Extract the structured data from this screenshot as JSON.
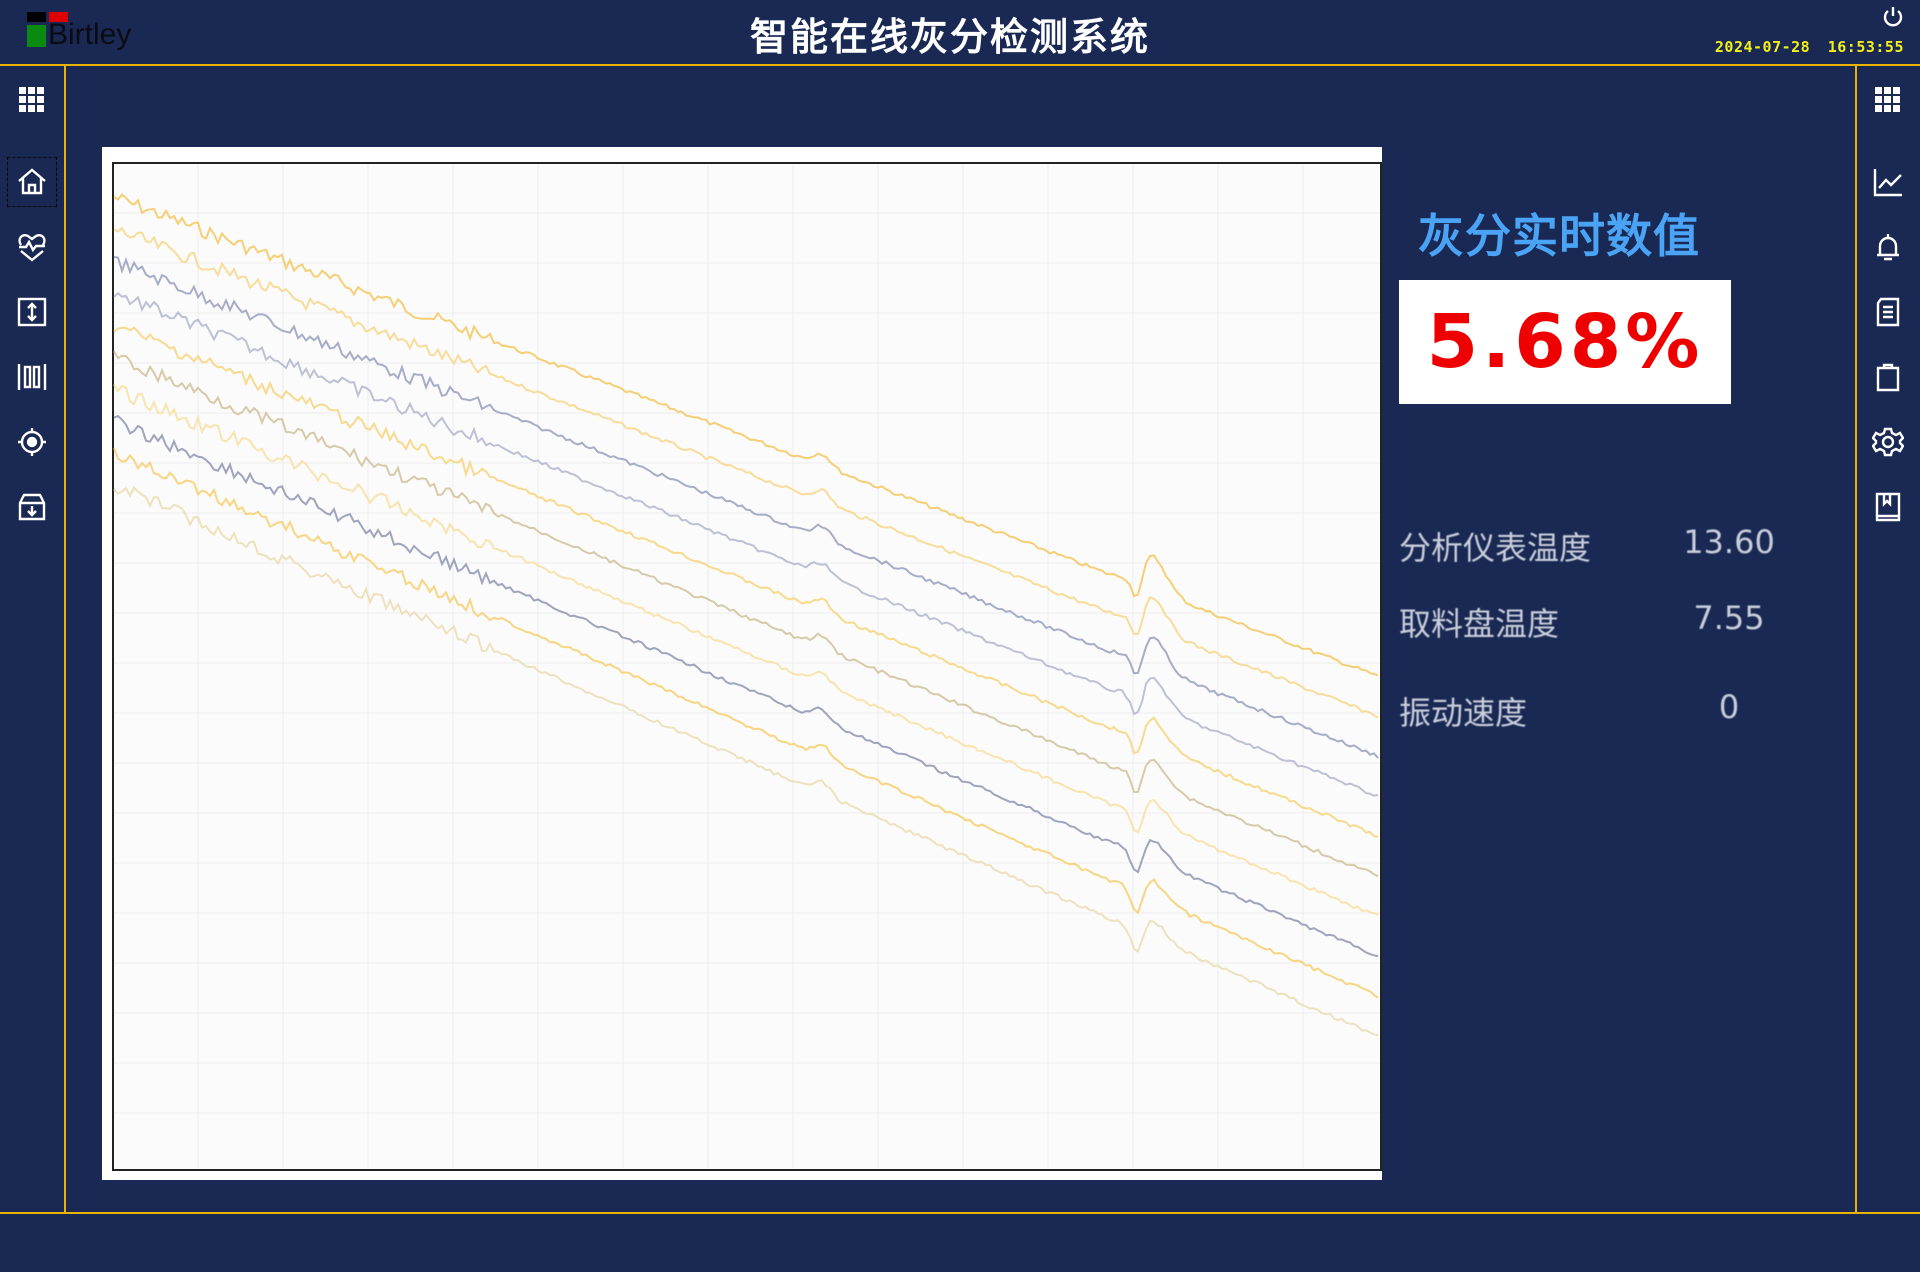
{
  "header": {
    "logo_text": "Birtley",
    "title": "智能在线灰分检测系统",
    "datetime": "2024-07-28 16:53:55"
  },
  "colors": {
    "background": "#192953",
    "accent_line": "#e8b400",
    "title_blue": "#4aa3f5",
    "value_red": "#ee0000",
    "datetime": "#f4f01a"
  },
  "left_sidebar": {
    "icons": [
      "apps-grid-icon",
      "home-icon",
      "health-heart-icon",
      "vertical-adjust-icon",
      "barcode-scan-icon",
      "target-icon",
      "archive-download-icon"
    ]
  },
  "right_sidebar": {
    "icons": [
      "apps-grid-icon",
      "line-chart-icon",
      "bell-icon",
      "document-icon",
      "clipboard-icon",
      "settings-gear-icon",
      "book-icon"
    ]
  },
  "chart": {
    "series_colors": [
      "#f3c04a",
      "#f7d27a",
      "#8a93b5",
      "#a8aec8",
      "#f5cf6a",
      "#c9b98e",
      "#f8dc96",
      "#7f88a8",
      "#f6c85a",
      "#e9d8a8"
    ]
  },
  "realtime": {
    "title": "灰分实时数值",
    "value": "5.68%"
  },
  "readings": [
    {
      "label": "分析仪表温度",
      "value": "13.60"
    },
    {
      "label": "取料盘温度",
      "value": "7.55"
    },
    {
      "label": "振动速度",
      "value": "0"
    }
  ]
}
